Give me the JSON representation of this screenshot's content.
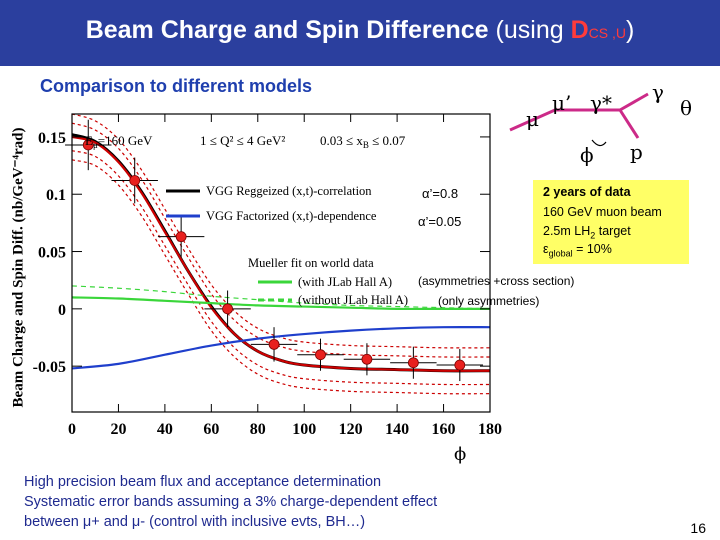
{
  "slide": {
    "title_main": "Beam Charge and Spin Difference",
    "title_suffix": "(using",
    "title_dcs": "D",
    "title_dcs_sub": "CS ,U",
    "title_close": ")",
    "subtitle": "Comparison to different models",
    "page_number": "16"
  },
  "diagram": {
    "mu": "μ",
    "mu_prime": "μ’",
    "gamma_star": "γ*",
    "gamma": "γ",
    "theta": "θ",
    "phi": "ϕ",
    "proton": "p"
  },
  "info_box": {
    "line1": "2 years of data",
    "line2": "160 GeV muon beam",
    "line3": "2.5m LH",
    "line3_sub": "2",
    "line3_tail": " target",
    "line4_eps": "ε",
    "line4_sub": "global",
    "line4_tail": " = 10%"
  },
  "annotations": {
    "alpha_08": "α’=0.8",
    "alpha_005": "α’=0.05",
    "asym_cross": "(asymmetries +cross section)",
    "asym_only": "(only asymmetries)"
  },
  "footnotes": {
    "line1": "High precision beam flux and acceptance determination",
    "line2": "Systematic error bands assuming a 3% charge-dependent effect",
    "line3": "between μ+ and μ-   (control with inclusive evts, BH…)"
  },
  "chart_data": {
    "type": "line",
    "ylabel": "Beam Charge and Spin Diff. (nb/GeV⁻⁴rad)",
    "xlabel": "ϕ",
    "xlim": [
      0,
      180
    ],
    "ylim": [
      -0.09,
      0.17
    ],
    "x_ticks": [
      0,
      20,
      40,
      60,
      80,
      100,
      120,
      140,
      160,
      180
    ],
    "y_ticks": [
      -0.05,
      0,
      0.05,
      0.1,
      0.15
    ],
    "y_tick_labels": [
      "-0.05",
      "0",
      "0.05",
      "0.1",
      "0.15"
    ],
    "kinematics": {
      "e_mu": "E",
      "e_mu_sub": "μ",
      "e_mu_val": "=160 GeV",
      "q2": "1 ≤ Q² ≤ 4 GeV²",
      "xb": "0.03 ≤ x",
      "xb_sub": "B",
      "xb_tail": " ≤ 0.07"
    },
    "legend": [
      {
        "name": "VGG Reggeized (x,t)-correlation",
        "color": "#000000",
        "style": "solid"
      },
      {
        "name": "VGG Factorized (x,t)-dependence",
        "color": "#1f3fcc",
        "style": "solid"
      },
      {
        "name": "Mueller fit on world data",
        "color": "#000000",
        "style": "none"
      },
      {
        "name": "(with JLab Hall A)",
        "color": "#3ad63a",
        "style": "solid"
      },
      {
        "name": "(without JLab Hall A)",
        "color": "#3ad63a",
        "style": "dashed"
      }
    ],
    "series": [
      {
        "name": "VGG Reggeized (x,t)-correlation",
        "color": "#000000",
        "dash": "",
        "x": [
          0,
          10,
          20,
          30,
          40,
          50,
          60,
          70,
          80,
          90,
          100,
          120,
          140,
          160,
          180
        ],
        "y": [
          0.152,
          0.146,
          0.129,
          0.102,
          0.068,
          0.033,
          0.002,
          -0.022,
          -0.037,
          -0.045,
          -0.049,
          -0.052,
          -0.053,
          -0.054,
          -0.054
        ]
      },
      {
        "name": "Mean Reggeized (red)",
        "color": "#cc0000",
        "dash": "",
        "x": [
          0,
          10,
          20,
          30,
          40,
          50,
          60,
          70,
          80,
          90,
          100,
          120,
          140,
          160,
          180
        ],
        "y": [
          0.15,
          0.145,
          0.128,
          0.101,
          0.067,
          0.033,
          0.001,
          -0.022,
          -0.037,
          -0.045,
          -0.049,
          -0.052,
          -0.053,
          -0.054,
          -0.054
        ]
      },
      {
        "name": "Syst band upper",
        "color": "#cc0000",
        "dash": "3,3",
        "x": [
          0,
          10,
          20,
          30,
          40,
          50,
          60,
          70,
          80,
          90,
          100,
          120,
          140,
          160,
          180
        ],
        "y": [
          0.162,
          0.156,
          0.14,
          0.113,
          0.079,
          0.045,
          0.013,
          -0.01,
          -0.025,
          -0.033,
          -0.037,
          -0.04,
          -0.041,
          -0.042,
          -0.042
        ]
      },
      {
        "name": "Syst band lower",
        "color": "#cc0000",
        "dash": "3,3",
        "x": [
          0,
          10,
          20,
          30,
          40,
          50,
          60,
          70,
          80,
          90,
          100,
          120,
          140,
          160,
          180
        ],
        "y": [
          0.138,
          0.133,
          0.116,
          0.089,
          0.055,
          0.021,
          -0.011,
          -0.034,
          -0.049,
          -0.057,
          -0.061,
          -0.064,
          -0.065,
          -0.066,
          -0.066
        ]
      },
      {
        "name": "Syst band upper 2",
        "color": "#cc0000",
        "dash": "3,3",
        "x": [
          0,
          10,
          20,
          30,
          40,
          50,
          60,
          70,
          80,
          90,
          100,
          120,
          140,
          160,
          180
        ],
        "y": [
          0.17,
          0.164,
          0.148,
          0.121,
          0.087,
          0.053,
          0.021,
          -0.002,
          -0.017,
          -0.025,
          -0.029,
          -0.032,
          -0.033,
          -0.034,
          -0.034
        ]
      },
      {
        "name": "Syst band lower 2",
        "color": "#cc0000",
        "dash": "3,3",
        "x": [
          0,
          10,
          20,
          30,
          40,
          50,
          60,
          70,
          80,
          90,
          100,
          120,
          140,
          160,
          180
        ],
        "y": [
          0.13,
          0.125,
          0.108,
          0.081,
          0.047,
          0.013,
          -0.019,
          -0.042,
          -0.057,
          -0.065,
          -0.069,
          -0.072,
          -0.073,
          -0.074,
          -0.074
        ]
      },
      {
        "name": "VGG Factorized (x,t)-dependence",
        "color": "#1f3fcc",
        "dash": "",
        "x": [
          0,
          20,
          40,
          60,
          80,
          100,
          120,
          140,
          160,
          180
        ],
        "y": [
          -0.052,
          -0.048,
          -0.04,
          -0.032,
          -0.026,
          -0.022,
          -0.019,
          -0.017,
          -0.016,
          -0.016
        ]
      },
      {
        "name": "(with JLab Hall A)",
        "color": "#3ad63a",
        "dash": "",
        "x": [
          0,
          20,
          40,
          60,
          80,
          100,
          120,
          140,
          160,
          180
        ],
        "y": [
          0.01,
          0.009,
          0.007,
          0.005,
          0.003,
          0.002,
          0.001,
          0.0,
          0.0,
          0.0
        ]
      },
      {
        "name": "(without JLab Hall A)",
        "color": "#3ad63a",
        "dash": "5,4",
        "x": [
          0,
          20,
          40,
          60,
          80,
          100,
          120,
          140,
          160,
          180
        ],
        "y": [
          0.02,
          0.018,
          0.015,
          0.011,
          0.008,
          0.005,
          0.003,
          0.002,
          0.001,
          0.0
        ]
      }
    ],
    "points": {
      "x": [
        7,
        27,
        47,
        67,
        87,
        107,
        127,
        147,
        167
      ],
      "y": [
        0.143,
        0.112,
        0.063,
        0.0,
        -0.031,
        -0.04,
        -0.044,
        -0.047,
        -0.049
      ],
      "xerr": 10,
      "yerr": [
        0.022,
        0.02,
        0.018,
        0.016,
        0.015,
        0.014,
        0.014,
        0.014,
        0.014
      ]
    }
  }
}
